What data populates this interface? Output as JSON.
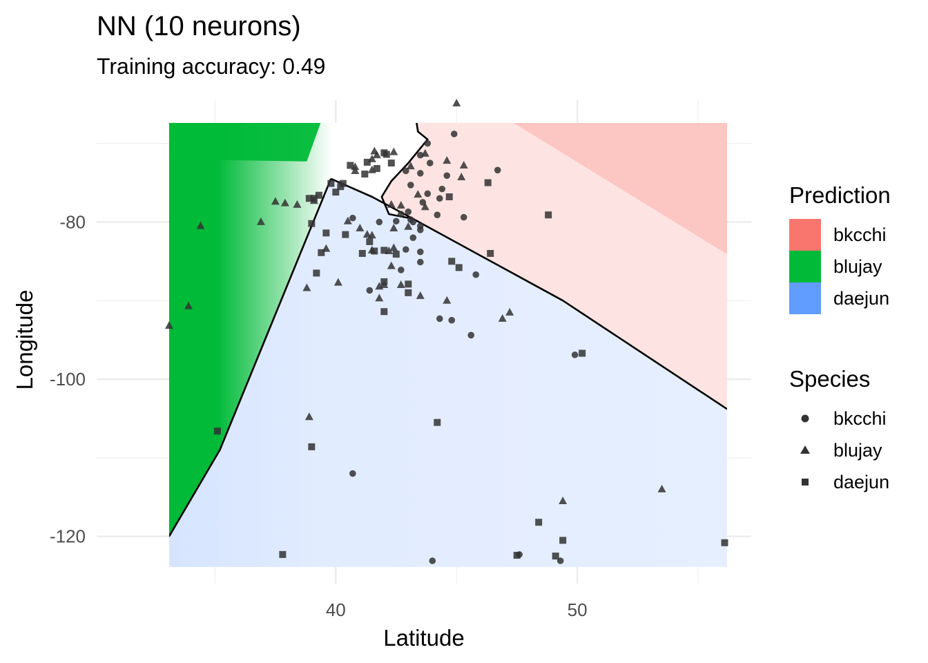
{
  "chart_data": {
    "type": "scatter",
    "title": "NN (10 neurons)",
    "subtitle": "Training accuracy: 0.49",
    "xlabel": "Latitude",
    "ylabel": "Longitude",
    "xlim": [
      30.1,
      57.2
    ],
    "ylim": [
      -126.0,
      -64.5
    ],
    "x_ticks": [
      40,
      50
    ],
    "y_ticks": [
      -80,
      -100,
      -120
    ],
    "grid": true,
    "prediction_region": {
      "xrange": [
        33.1,
        56.2
      ],
      "yrange": [
        -123.9,
        -67.4
      ]
    },
    "decision_boundaries": [
      {
        "name": "blujay-daejun",
        "points": [
          [
            33.1,
            -120
          ],
          [
            35.2,
            -109
          ],
          [
            39.8,
            -74.5
          ]
        ]
      },
      {
        "name": "daejun-bkcchi",
        "points": [
          [
            39.8,
            -74.5
          ],
          [
            41.5,
            -76.8
          ],
          [
            43.2,
            -79.6
          ],
          [
            49.4,
            -90
          ],
          [
            56.2,
            -103.8
          ]
        ]
      },
      {
        "name": "blujay-bkcchi",
        "points": [
          [
            43.3,
            -66.5
          ],
          [
            43.4,
            -68.5
          ],
          [
            43.8,
            -69.5
          ],
          [
            43.0,
            -72.5
          ],
          [
            42.3,
            -74.8
          ],
          [
            41.9,
            -76.8
          ],
          [
            42.2,
            -79.0
          ],
          [
            43.2,
            -79.6
          ]
        ]
      }
    ],
    "fill_legend": {
      "title": "Prediction",
      "items": [
        {
          "label": "bkcchi",
          "color": "#F8766D"
        },
        {
          "label": "blujay",
          "color": "#00BA38"
        },
        {
          "label": "daejun",
          "color": "#619CFF"
        }
      ]
    },
    "shape_legend": {
      "title": "Species",
      "items": [
        {
          "label": "bkcchi",
          "shape": "circle"
        },
        {
          "label": "blujay",
          "shape": "triangle"
        },
        {
          "label": "daejun",
          "shape": "square"
        }
      ]
    },
    "series": [
      {
        "name": "bkcchi",
        "shape": "circle",
        "points": [
          [
            44.9,
            -68.8
          ],
          [
            43.8,
            -70.0
          ],
          [
            43.5,
            -71.5
          ],
          [
            43.9,
            -72.5
          ],
          [
            42.9,
            -73.5
          ],
          [
            43.5,
            -73.8
          ],
          [
            46.7,
            -73.4
          ],
          [
            44.6,
            -74.1
          ],
          [
            43.1,
            -75.3
          ],
          [
            44.4,
            -75.8
          ],
          [
            43.8,
            -76.4
          ],
          [
            44.3,
            -77.0
          ],
          [
            43.6,
            -77.5
          ],
          [
            43.0,
            -78.7
          ],
          [
            42.7,
            -79.0
          ],
          [
            43.1,
            -79.7
          ],
          [
            44.2,
            -79.1
          ],
          [
            45.3,
            -79.4
          ],
          [
            42.5,
            -79.9
          ],
          [
            43.2,
            -80.0
          ],
          [
            41.8,
            -80.0
          ],
          [
            40.7,
            -79.5
          ],
          [
            43.5,
            -80.5
          ],
          [
            43.5,
            -81.0
          ],
          [
            43.2,
            -82.0
          ],
          [
            42.9,
            -83.5
          ],
          [
            43.5,
            -83.8
          ],
          [
            43.5,
            -85.1
          ],
          [
            42.7,
            -86.1
          ],
          [
            45.8,
            -86.7
          ],
          [
            41.4,
            -88.7
          ],
          [
            44.3,
            -92.3
          ],
          [
            44.8,
            -92.5
          ],
          [
            45.6,
            -94.4
          ],
          [
            49.9,
            -96.9
          ],
          [
            40.7,
            -112.0
          ],
          [
            44.0,
            -123.1
          ],
          [
            47.6,
            -122.3
          ],
          [
            49.3,
            -123.1
          ]
        ]
      },
      {
        "name": "blujay",
        "shape": "triangle",
        "points": [
          [
            45.0,
            -64.9
          ],
          [
            44.6,
            -72.2
          ],
          [
            45.3,
            -72.8
          ],
          [
            43.7,
            -71.3
          ],
          [
            43.1,
            -72.9
          ],
          [
            41.7,
            -71.5
          ],
          [
            41.6,
            -71.0
          ],
          [
            42.4,
            -71.1
          ],
          [
            41.5,
            -72.0
          ],
          [
            40.8,
            -73.0
          ],
          [
            41.5,
            -73.4
          ],
          [
            40.8,
            -73.5
          ],
          [
            43.4,
            -76.5
          ],
          [
            42.3,
            -77.8
          ],
          [
            42.7,
            -77.9
          ],
          [
            43.7,
            -78.1
          ],
          [
            45.2,
            -74.3
          ],
          [
            38.4,
            -77.8
          ],
          [
            37.9,
            -77.6
          ],
          [
            37.5,
            -77.4
          ],
          [
            36.9,
            -80.0
          ],
          [
            39.1,
            -77.3
          ],
          [
            40.5,
            -79.9
          ],
          [
            41.0,
            -80.8
          ],
          [
            41.3,
            -81.6
          ],
          [
            42.4,
            -80.8
          ],
          [
            43.0,
            -80.6
          ],
          [
            41.5,
            -81.7
          ],
          [
            41.5,
            -83.6
          ],
          [
            42.4,
            -83.3
          ],
          [
            42.2,
            -83.7
          ],
          [
            42.3,
            -85.6
          ],
          [
            42.0,
            -88.0
          ],
          [
            42.7,
            -88.0
          ],
          [
            41.8,
            -88.2
          ],
          [
            40.1,
            -87.7
          ],
          [
            41.8,
            -89.7
          ],
          [
            43.5,
            -89.4
          ],
          [
            34.4,
            -80.5
          ],
          [
            33.9,
            -90.7
          ],
          [
            33.1,
            -93.2
          ],
          [
            39.6,
            -83.4
          ],
          [
            38.8,
            -88.4
          ],
          [
            44.6,
            -90.0
          ],
          [
            47.2,
            -91.5
          ],
          [
            46.9,
            -92.3
          ],
          [
            38.9,
            -104.8
          ],
          [
            49.4,
            -115.5
          ],
          [
            53.5,
            -114.0
          ]
        ]
      },
      {
        "name": "daejun",
        "shape": "square",
        "points": [
          [
            42.0,
            -71.2
          ],
          [
            42.1,
            -71.4
          ],
          [
            41.3,
            -72.4
          ],
          [
            40.6,
            -72.8
          ],
          [
            41.7,
            -73.2
          ],
          [
            42.3,
            -72.5
          ],
          [
            41.2,
            -73.9
          ],
          [
            39.8,
            -75.1
          ],
          [
            40.3,
            -75.1
          ],
          [
            40.2,
            -75.5
          ],
          [
            40.0,
            -76.2
          ],
          [
            39.3,
            -76.6
          ],
          [
            38.9,
            -77.0
          ],
          [
            39.1,
            -77.0
          ],
          [
            39.0,
            -80.2
          ],
          [
            39.6,
            -81.4
          ],
          [
            40.4,
            -81.6
          ],
          [
            39.4,
            -83.9
          ],
          [
            41.4,
            -82.5
          ],
          [
            41.6,
            -83.7
          ],
          [
            42.0,
            -83.6
          ],
          [
            41.1,
            -84.0
          ],
          [
            42.5,
            -84.1
          ],
          [
            44.8,
            -85.0
          ],
          [
            45.1,
            -85.8
          ],
          [
            46.4,
            -84.0
          ],
          [
            42.0,
            -87.6
          ],
          [
            43.0,
            -89.0
          ],
          [
            43.0,
            -87.9
          ],
          [
            39.2,
            -86.5
          ],
          [
            42.0,
            -91.4
          ],
          [
            46.3,
            -75.0
          ],
          [
            48.8,
            -79.1
          ],
          [
            44.7,
            -76.8
          ],
          [
            50.2,
            -96.7
          ],
          [
            35.1,
            -106.6
          ],
          [
            39.0,
            -108.6
          ],
          [
            44.2,
            -105.5
          ],
          [
            48.4,
            -118.2
          ],
          [
            37.8,
            -122.3
          ],
          [
            47.5,
            -122.4
          ],
          [
            49.1,
            -122.5
          ],
          [
            49.4,
            -120.5
          ],
          [
            56.1,
            -120.8
          ]
        ]
      }
    ]
  }
}
